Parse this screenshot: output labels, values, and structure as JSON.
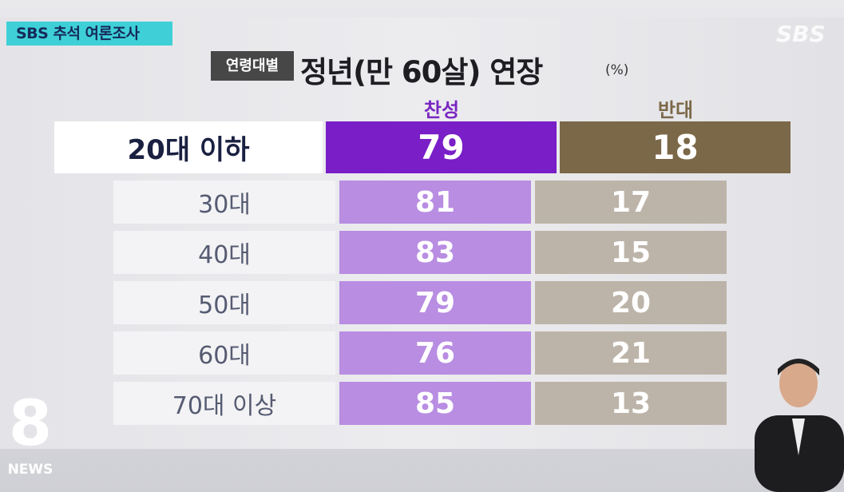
{
  "badge": "SBS 추석 여론조사",
  "logo": "SBS",
  "title": {
    "tag": "연령대별",
    "text": "정년(만 60살) 연장",
    "unit": "(%)"
  },
  "table": {
    "columns": [
      "찬성",
      "반대"
    ],
    "rows": [
      {
        "label": "20대 이하",
        "values": [
          79,
          18
        ]
      },
      {
        "label": "30대",
        "values": [
          81,
          17
        ]
      },
      {
        "label": "40대",
        "values": [
          83,
          15
        ]
      },
      {
        "label": "50대",
        "values": [
          79,
          20
        ]
      },
      {
        "label": "60대",
        "values": [
          76,
          21
        ]
      },
      {
        "label": "70대 이상",
        "values": [
          85,
          13
        ]
      }
    ]
  },
  "news_logo": {
    "number": "8",
    "text": "NEWS"
  }
}
